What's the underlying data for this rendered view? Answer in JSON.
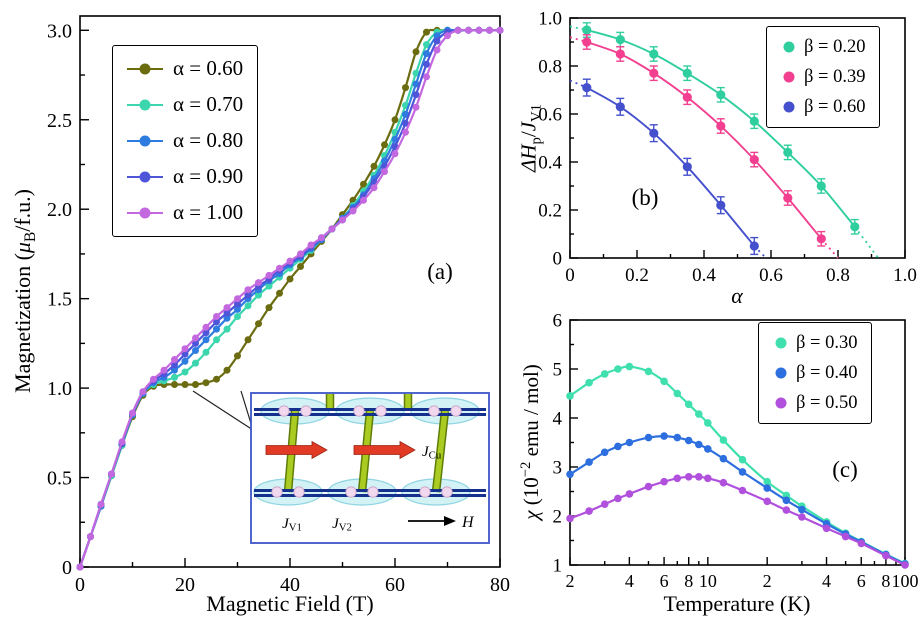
{
  "chart_data": [
    {
      "id": "a",
      "type": "line",
      "panel_label": "(a)",
      "xlabel": "Magnetic Field (T)",
      "ylabel_rich": [
        {
          "t": "Magnetization ("
        },
        {
          "t": "μ",
          "i": true
        },
        {
          "t": "B",
          "sub": true
        },
        {
          "t": "/f.u.)"
        }
      ],
      "xlim": [
        0,
        80
      ],
      "ylim": [
        0,
        3.08
      ],
      "xticks": [
        0,
        20,
        40,
        60,
        80
      ],
      "xminor": [
        10,
        30,
        50,
        70
      ],
      "yticks": [
        0,
        0.5,
        1.0,
        1.5,
        2.0,
        2.5,
        3.0
      ],
      "ytick_labels": [
        "0",
        "0.5",
        "1.0",
        "1.5",
        "2.0",
        "2.5",
        "3.0"
      ],
      "yminor": [
        0.25,
        0.75,
        1.25,
        1.75,
        2.25,
        2.75
      ],
      "legend_position": "top-left",
      "x": [
        0,
        2,
        4,
        6,
        8,
        10,
        12,
        14,
        16,
        18,
        20,
        22,
        24,
        26,
        28,
        30,
        32,
        34,
        36,
        38,
        40,
        42,
        44,
        46,
        48,
        50,
        52,
        54,
        56,
        58,
        60,
        62,
        64,
        66,
        68,
        70,
        72,
        74,
        76,
        78,
        80
      ],
      "series": [
        {
          "name": "α = 0.60",
          "color": "#6b6b10",
          "y": [
            0,
            0.17,
            0.34,
            0.51,
            0.68,
            0.84,
            0.96,
            1.01,
            1.02,
            1.02,
            1.02,
            1.02,
            1.03,
            1.05,
            1.1,
            1.18,
            1.27,
            1.36,
            1.45,
            1.53,
            1.61,
            1.68,
            1.75,
            1.82,
            1.89,
            1.97,
            2.05,
            2.14,
            2.24,
            2.36,
            2.5,
            2.68,
            2.88,
            2.99,
            3.0,
            3.0,
            3.0,
            3.0,
            3.0,
            3.0,
            3.0
          ]
        },
        {
          "name": "α = 0.70",
          "color": "#3bd6ad",
          "y": [
            0,
            0.17,
            0.34,
            0.51,
            0.68,
            0.85,
            0.97,
            1.02,
            1.04,
            1.06,
            1.09,
            1.14,
            1.2,
            1.27,
            1.33,
            1.4,
            1.46,
            1.52,
            1.57,
            1.62,
            1.67,
            1.72,
            1.77,
            1.83,
            1.89,
            1.95,
            2.02,
            2.1,
            2.19,
            2.3,
            2.43,
            2.58,
            2.76,
            2.92,
            2.99,
            3.0,
            3.0,
            3.0,
            3.0,
            3.0,
            3.0
          ]
        },
        {
          "name": "α = 0.80",
          "color": "#2f7ce0",
          "y": [
            0,
            0.17,
            0.34,
            0.52,
            0.69,
            0.85,
            0.97,
            1.03,
            1.06,
            1.1,
            1.15,
            1.21,
            1.27,
            1.33,
            1.39,
            1.44,
            1.5,
            1.55,
            1.6,
            1.64,
            1.69,
            1.73,
            1.78,
            1.83,
            1.89,
            1.95,
            2.01,
            2.08,
            2.17,
            2.27,
            2.39,
            2.53,
            2.7,
            2.87,
            2.97,
            3.0,
            3.0,
            3.0,
            3.0,
            3.0,
            3.0
          ]
        },
        {
          "name": "α = 0.90",
          "color": "#4f55d8",
          "y": [
            0,
            0.17,
            0.35,
            0.52,
            0.69,
            0.86,
            0.98,
            1.04,
            1.08,
            1.13,
            1.19,
            1.25,
            1.31,
            1.37,
            1.42,
            1.47,
            1.52,
            1.57,
            1.61,
            1.66,
            1.7,
            1.74,
            1.79,
            1.84,
            1.89,
            1.94,
            2.0,
            2.07,
            2.15,
            2.24,
            2.35,
            2.48,
            2.64,
            2.81,
            2.94,
            2.99,
            3.0,
            3.0,
            3.0,
            3.0,
            3.0
          ]
        },
        {
          "name": "α = 1.00",
          "color": "#c468e0",
          "y": [
            0,
            0.17,
            0.35,
            0.52,
            0.7,
            0.86,
            0.98,
            1.05,
            1.1,
            1.16,
            1.22,
            1.28,
            1.34,
            1.4,
            1.45,
            1.5,
            1.55,
            1.59,
            1.63,
            1.67,
            1.71,
            1.75,
            1.8,
            1.84,
            1.89,
            1.94,
            1.99,
            2.05,
            2.12,
            2.21,
            2.31,
            2.43,
            2.57,
            2.74,
            2.89,
            2.97,
            3.0,
            3.0,
            3.0,
            3.0,
            3.0
          ]
        }
      ]
    },
    {
      "id": "b",
      "type": "scatter",
      "panel_label": "(b)",
      "xlabel_rich": [
        {
          "t": "α",
          "i": true
        }
      ],
      "ylabel_rich": [
        {
          "t": "ΔH",
          "i": true
        },
        {
          "t": "p",
          "sub": true
        },
        {
          "t": "/"
        },
        {
          "t": "J",
          "i": true
        },
        {
          "t": "V1",
          "sub": true
        }
      ],
      "xlim": [
        0,
        1.0
      ],
      "ylim": [
        0,
        1.0
      ],
      "xticks": [
        0,
        0.2,
        0.4,
        0.6,
        0.8,
        1.0
      ],
      "xtick_labels": [
        "0",
        "0.2",
        "0.4",
        "0.6",
        "0.8",
        "1.0"
      ],
      "xminor": [
        0.1,
        0.3,
        0.5,
        0.7,
        0.9
      ],
      "yticks": [
        0,
        0.2,
        0.4,
        0.6,
        0.8,
        1.0
      ],
      "ytick_labels": [
        "0",
        "0.2",
        "0.4",
        "0.6",
        "0.8",
        "1.0"
      ],
      "yminor": [
        0.1,
        0.3,
        0.5,
        0.7,
        0.9
      ],
      "legend_position": "top-right",
      "series": [
        {
          "name": "β = 0.20",
          "color": "#2fce9e",
          "yerr": 0.03,
          "x": [
            0.05,
            0.15,
            0.25,
            0.35,
            0.45,
            0.55,
            0.65,
            0.75,
            0.85
          ],
          "y": [
            0.95,
            0.91,
            0.85,
            0.77,
            0.68,
            0.57,
            0.44,
            0.3,
            0.13
          ],
          "line_x": [
            0,
            0.05,
            0.15,
            0.25,
            0.35,
            0.45,
            0.55,
            0.65,
            0.75,
            0.85,
            0.92
          ],
          "line_y": [
            0.965,
            0.95,
            0.91,
            0.85,
            0.77,
            0.68,
            0.57,
            0.44,
            0.3,
            0.13,
            0
          ]
        },
        {
          "name": "β = 0.39",
          "color": "#f23f8f",
          "yerr": 0.03,
          "x": [
            0.05,
            0.15,
            0.25,
            0.35,
            0.45,
            0.55,
            0.65,
            0.75
          ],
          "y": [
            0.9,
            0.85,
            0.77,
            0.67,
            0.55,
            0.41,
            0.25,
            0.08
          ],
          "line_x": [
            0,
            0.05,
            0.15,
            0.25,
            0.35,
            0.45,
            0.55,
            0.65,
            0.75,
            0.8
          ],
          "line_y": [
            0.92,
            0.9,
            0.85,
            0.77,
            0.67,
            0.55,
            0.41,
            0.25,
            0.08,
            0
          ]
        },
        {
          "name": "β = 0.60",
          "color": "#4450cc",
          "yerr": 0.035,
          "x": [
            0.05,
            0.15,
            0.25,
            0.35,
            0.45,
            0.55
          ],
          "y": [
            0.71,
            0.63,
            0.52,
            0.38,
            0.22,
            0.05
          ],
          "line_x": [
            0,
            0.05,
            0.15,
            0.25,
            0.35,
            0.45,
            0.55,
            0.585
          ],
          "line_y": [
            0.74,
            0.71,
            0.63,
            0.52,
            0.38,
            0.22,
            0.05,
            0
          ]
        }
      ]
    },
    {
      "id": "c",
      "type": "line",
      "panel_label": "(c)",
      "xlabel": "Temperature (K)",
      "ylabel_rich": [
        {
          "t": "χ",
          "i": true
        },
        {
          "t": " (10"
        },
        {
          "t": "−2",
          "sup": true
        },
        {
          "t": " emu / mol)"
        }
      ],
      "xscale": "log",
      "xlim": [
        2,
        100
      ],
      "ylim": [
        1,
        6
      ],
      "xticks": [
        2,
        4,
        6,
        8,
        10,
        20,
        40,
        60,
        80,
        100
      ],
      "xtick_labels": [
        "2",
        "4",
        "6",
        "8",
        "10",
        "2",
        "4",
        "6",
        "8",
        "100"
      ],
      "xminor": [
        3,
        5,
        7,
        9,
        30,
        50,
        70,
        90
      ],
      "yticks": [
        1,
        2,
        3,
        4,
        5,
        6
      ],
      "ytick_labels": [
        "1",
        "2",
        "3",
        "4",
        "5",
        "6"
      ],
      "yminor": [
        1.5,
        2.5,
        3.5,
        4.5,
        5.5
      ],
      "legend_position": "top-right",
      "x": [
        2,
        2.5,
        3,
        3.5,
        4,
        5,
        6,
        7,
        8,
        9,
        10,
        12,
        15,
        20,
        25,
        30,
        40,
        50,
        60,
        80,
        100
      ],
      "series": [
        {
          "name": "β = 0.30",
          "color": "#3fe0ae",
          "y": [
            4.45,
            4.72,
            4.9,
            5.0,
            5.05,
            4.95,
            4.75,
            4.5,
            4.28,
            4.08,
            3.9,
            3.55,
            3.15,
            2.7,
            2.42,
            2.2,
            1.88,
            1.65,
            1.48,
            1.22,
            1.03
          ]
        },
        {
          "name": "β = 0.40",
          "color": "#2e6fe0",
          "y": [
            2.85,
            3.1,
            3.3,
            3.42,
            3.5,
            3.6,
            3.63,
            3.6,
            3.54,
            3.46,
            3.37,
            3.17,
            2.9,
            2.57,
            2.32,
            2.13,
            1.84,
            1.63,
            1.47,
            1.21,
            1.02
          ]
        },
        {
          "name": "β = 0.50",
          "color": "#b050dd",
          "y": [
            1.95,
            2.1,
            2.24,
            2.36,
            2.45,
            2.6,
            2.7,
            2.77,
            2.8,
            2.8,
            2.77,
            2.68,
            2.52,
            2.3,
            2.12,
            1.98,
            1.75,
            1.58,
            1.44,
            1.19,
            1.0
          ]
        }
      ]
    }
  ],
  "inset": {
    "border_color": "#3c55c8",
    "labels": {
      "jcu": [
        {
          "t": "J",
          "i": true
        },
        {
          "t": "Cu",
          "sub": true
        }
      ],
      "jv1": [
        {
          "t": "J",
          "i": true
        },
        {
          "t": "V1",
          "sub": true
        }
      ],
      "jv2": [
        {
          "t": "J",
          "i": true
        },
        {
          "t": "V2",
          "sub": true
        }
      ],
      "field": [
        {
          "t": "H",
          "i": true
        }
      ]
    },
    "colors": {
      "dimer_fill": "#cdf1f5",
      "dimer_stroke": "#8fd4e2",
      "bar": "#16308e",
      "rod": "#aacc22",
      "rod_edge": "#5f7d08",
      "arrow": "#e23b25",
      "sphere": "#f2d8ee"
    }
  }
}
